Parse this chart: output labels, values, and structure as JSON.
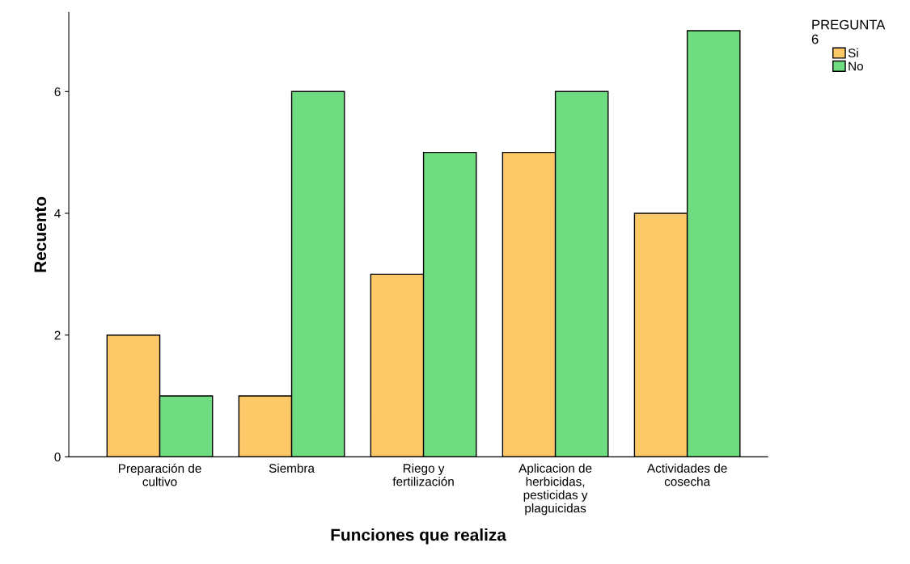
{
  "chart_data": {
    "type": "bar",
    "xlabel": "Funciones que realiza",
    "ylabel": "Recuento",
    "legend_title": "PREGUNTA\n6",
    "categories": [
      "Preparación de\ncultivo",
      "Siembra",
      "Riego y\nfertilización",
      "Aplicacion de\nherbicidas,\npesticidas y\nplaguicidas",
      "Actividades de\ncosecha"
    ],
    "series": [
      {
        "name": "Si",
        "color": "#fdc868",
        "values": [
          2,
          1,
          3,
          5,
          4
        ]
      },
      {
        "name": "No",
        "color": "#6fdc82",
        "values": [
          1,
          6,
          5,
          6,
          7
        ]
      }
    ],
    "ylim": [
      0,
      7.3
    ],
    "yticks": [
      0,
      2,
      4,
      6
    ],
    "grid": false,
    "legend": "top right"
  }
}
